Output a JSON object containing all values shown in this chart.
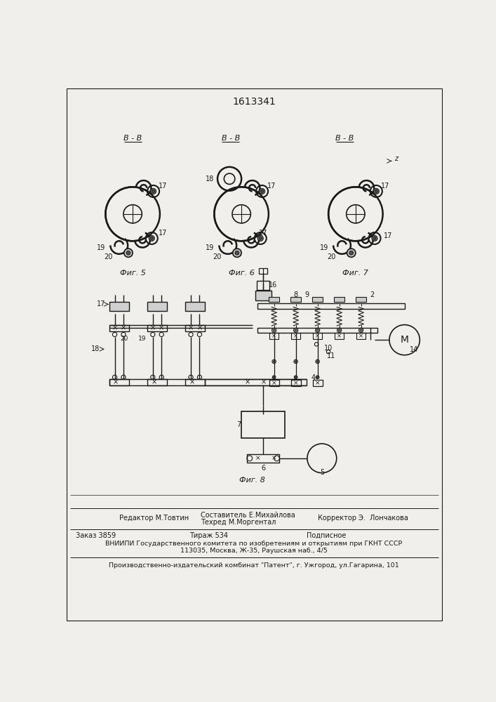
{
  "patent_number": "1613341",
  "bg_color": "#f0efeb",
  "line_color": "#1a1a1a",
  "fig5_label": "Фиг. 5",
  "fig6_label": "Фиг. 6",
  "fig7_label": "Фиг. 7",
  "fig8_label": "Фиг. 8",
  "footer_line1_left": "Редактор М.Товтин",
  "footer_line1_mid1": "Составитель Е.Михайлова",
  "footer_line1_mid2": "Техред М.Моргентал",
  "footer_line1_right": "Корректор Э.  Лончакова",
  "footer_line2_1": "Заказ 3859",
  "footer_line2_2": "Тираж 534",
  "footer_line2_3": "Подписное",
  "footer_line3": "ВНИИПИ Государственного комитета по изобретениям и открытиям при ГКНТ СССР",
  "footer_line4": "113035, Москва, Ж-35, Раушская наб., 4/5",
  "footer_line5": "Производственно-издательский комбинат \"Патент\", г. Ужгород, ул.Гагарина, 101"
}
